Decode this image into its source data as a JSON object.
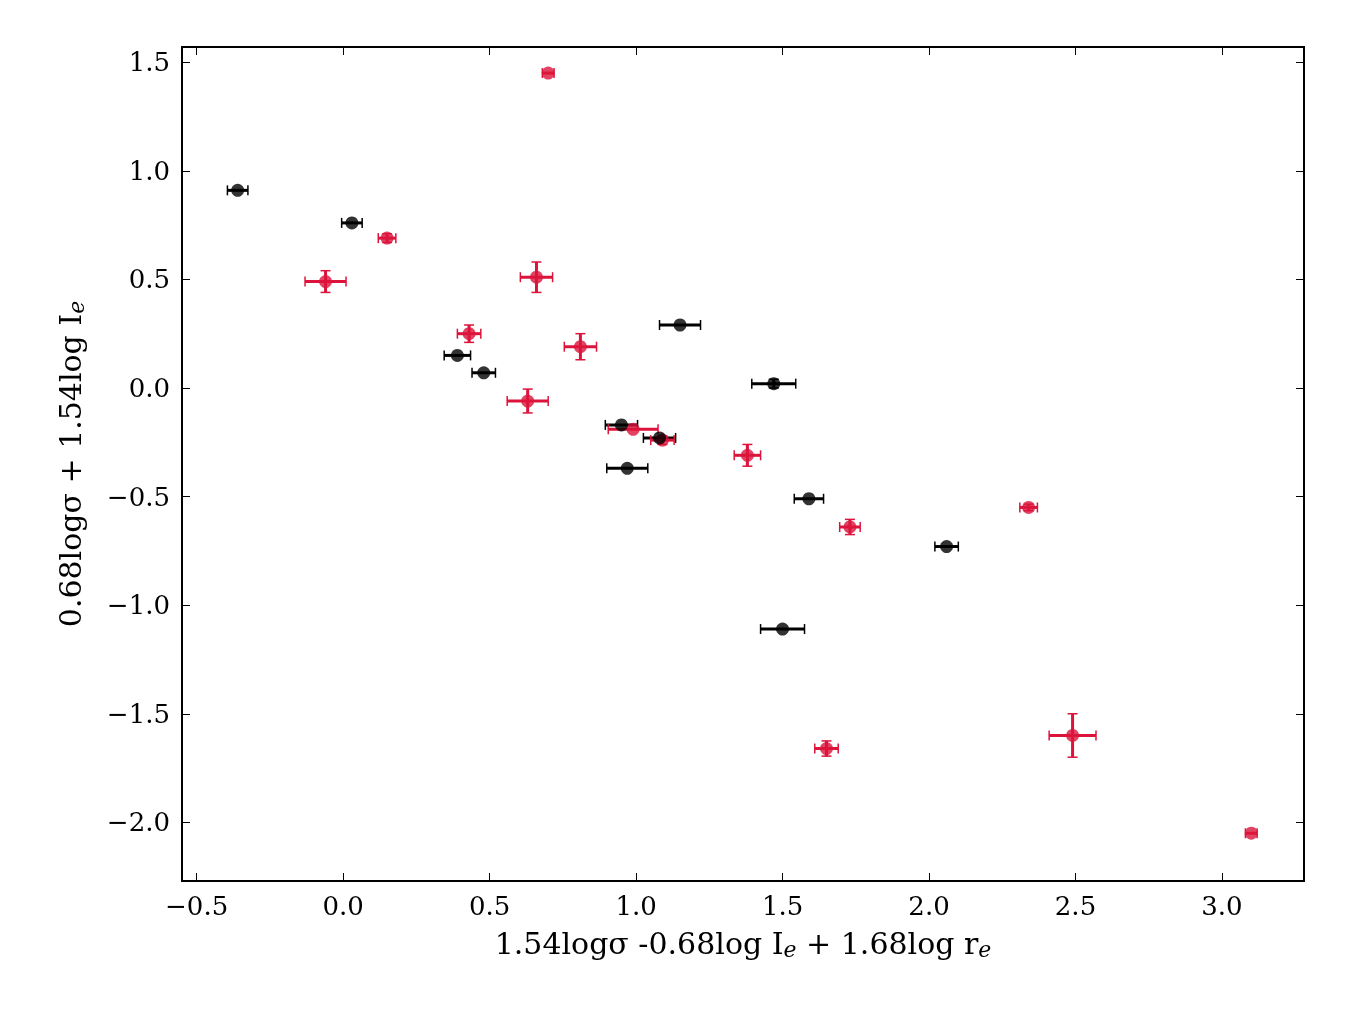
{
  "chart_data": {
    "type": "scatter",
    "xlabel": "1.54logσ -0.68log I$_{e}$ + 1.68log r$_{e}$",
    "ylabel": "0.68logσ + 1.54log I$_{e}$",
    "xlim": [
      -0.55,
      3.28
    ],
    "ylim": [
      -2.27,
      1.57
    ],
    "xticks": [
      {
        "value": -0.5,
        "label": "−0.5"
      },
      {
        "value": 0,
        "label": "0.0"
      },
      {
        "value": 0.5,
        "label": "0.5"
      },
      {
        "value": 1,
        "label": "1.0"
      },
      {
        "value": 1.5,
        "label": "1.5"
      },
      {
        "value": 2,
        "label": "2.0"
      },
      {
        "value": 2.5,
        "label": "2.5"
      },
      {
        "value": 3,
        "label": "3.0"
      }
    ],
    "yticks": [
      {
        "value": -2,
        "label": "−2.0"
      },
      {
        "value": -1.5,
        "label": "−1.5"
      },
      {
        "value": -1,
        "label": "−1.0"
      },
      {
        "value": -0.5,
        "label": "−0.5"
      },
      {
        "value": 0,
        "label": "0.0"
      },
      {
        "value": 0.5,
        "label": "0.5"
      },
      {
        "value": 1,
        "label": "1.0"
      },
      {
        "value": 1.5,
        "label": "1.5"
      }
    ],
    "grid": false,
    "marker": "circle",
    "series": [
      {
        "color": "#000000",
        "x": [
          -0.36,
          0.03,
          0.39,
          0.48,
          1.15,
          1.47,
          0.95,
          1.08,
          0.97,
          1.59,
          2.06,
          1.5
        ],
        "values": [
          0.91,
          0.76,
          0.15,
          0.07,
          0.29,
          0.02,
          -0.17,
          -0.23,
          -0.37,
          -0.51,
          -0.73,
          -1.11
        ],
        "xerrors": [
          0.035,
          0.035,
          0.045,
          0.04,
          0.07,
          0.075,
          0.055,
          0.055,
          0.07,
          0.05,
          0.04,
          0.075
        ],
        "errors": [
          null,
          null,
          null,
          null,
          null,
          0.02,
          null,
          null,
          null,
          null,
          null,
          null
        ]
      },
      {
        "color": "#dc143c",
        "x": [
          0.7,
          0.15,
          -0.06,
          0.66,
          0.43,
          0.81,
          0.63,
          0.99,
          1.09,
          1.38,
          1.73,
          2.34,
          1.65,
          2.49,
          3.1
        ],
        "values": [
          1.45,
          0.69,
          0.49,
          0.51,
          0.25,
          0.19,
          -0.06,
          -0.19,
          -0.24,
          -0.31,
          -0.64,
          -0.55,
          -1.66,
          -1.6,
          -2.05
        ],
        "xerrors": [
          0.02,
          0.03,
          0.07,
          0.055,
          0.04,
          0.055,
          0.07,
          0.085,
          0.04,
          0.045,
          0.035,
          0.03,
          0.04,
          0.08,
          0.02
        ],
        "errors": [
          null,
          0.02,
          0.05,
          0.07,
          0.04,
          0.06,
          0.055,
          null,
          0.02,
          0.05,
          0.035,
          0.015,
          0.035,
          0.1,
          null
        ]
      }
    ]
  }
}
